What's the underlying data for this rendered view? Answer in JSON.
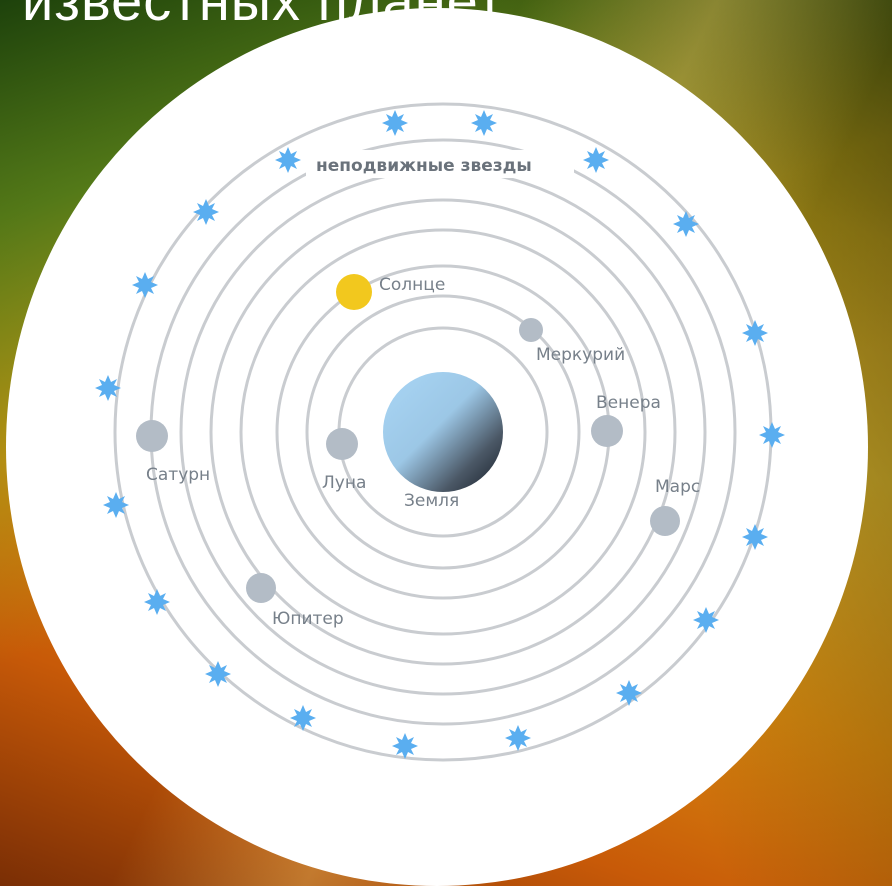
{
  "heading": "известных планет.",
  "labels": {
    "fixed_stars": "неподвижные звезды",
    "sun": "Солнце",
    "mercury": "Меркурий",
    "venus": "Венера",
    "mars": "Марс",
    "jupiter": "Юпитер",
    "saturn": "Сатурн",
    "moon": "Луна",
    "earth": "Земля"
  },
  "colors": {
    "orbit": "#c9ccd0",
    "orbit_band": "#f6f6f7",
    "planet": "#b3bcc6",
    "sun": "#f2c81e",
    "star": "#5aaef0",
    "earth_light": "#a9d6f5",
    "earth_dark": "#141c26"
  }
}
